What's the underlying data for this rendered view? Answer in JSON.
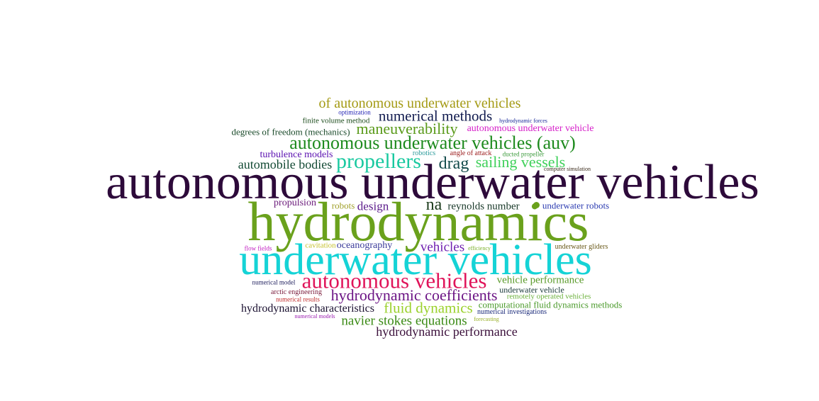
{
  "words": [
    {
      "text": "autonomous underwater vehicles",
      "color": "#2d0a3a"
    },
    {
      "text": "hydrodynamics",
      "color": "#6aa11c"
    },
    {
      "text": "underwater vehicles",
      "color": "#15d3d6"
    },
    {
      "text": "autonomous vehicles",
      "color": "#e0145a"
    },
    {
      "text": "propellers",
      "color": "#19c9a0"
    },
    {
      "text": "autonomous underwater vehicles (auv)",
      "color": "#1d8a1d"
    },
    {
      "text": "hydrodynamic coefficients",
      "color": "#6c1585"
    },
    {
      "text": "of autonomous underwater vehicles",
      "color": "#a49a14"
    },
    {
      "text": "numerical methods",
      "color": "#101a4e"
    },
    {
      "text": "maneuverability",
      "color": "#5a9a1a"
    },
    {
      "text": "sailing vessels",
      "color": "#3fd15a"
    },
    {
      "text": "na",
      "color": "#1a3a1a"
    },
    {
      "text": "drag",
      "color": "#114a4a"
    },
    {
      "text": "fluid dynamics",
      "color": "#9bd12c"
    },
    {
      "text": "navier stokes equations",
      "color": "#3a8a14"
    },
    {
      "text": "vehicles",
      "color": "#6f1fb0"
    },
    {
      "text": "automobile bodies",
      "color": "#134a34"
    },
    {
      "text": "hydrodynamic performance",
      "color": "#3a0f3a"
    },
    {
      "text": "hydrodynamic characteristics",
      "color": "#1a1030"
    },
    {
      "text": "design",
      "color": "#5a1a8a"
    },
    {
      "text": "vehicle performance",
      "color": "#5a9a2a"
    },
    {
      "text": "reynolds number",
      "color": "#1a3a2a"
    },
    {
      "text": "autonomous underwater vehicle",
      "color": "#d61fc9"
    },
    {
      "text": "degrees of freedom (mechanics)",
      "color": "#1a4a2a"
    },
    {
      "text": "propulsion",
      "color": "#6a1a7a"
    },
    {
      "text": "turbulence models",
      "color": "#5a10b0"
    },
    {
      "text": "oceanography",
      "color": "#3a3a9a"
    },
    {
      "text": "underwater robots",
      "color": "#2a3ab0"
    },
    {
      "text": "computational fluid dynamics methods",
      "color": "#4a9a2a"
    },
    {
      "text": "underwater vehicle",
      "color": "#1a3a3a"
    },
    {
      "text": "robots",
      "color": "#a0a02a"
    },
    {
      "text": "finite volume method",
      "color": "#1a4a1a"
    },
    {
      "text": "remotely operated vehicles",
      "color": "#6ab03a"
    },
    {
      "text": "numerical investigations",
      "color": "#1a2a7a"
    },
    {
      "text": "arctic engineering",
      "color": "#7a1a3a"
    },
    {
      "text": "cavitation",
      "color": "#c4c02a"
    },
    {
      "text": "underwater gliders",
      "color": "#6a5a1a"
    },
    {
      "text": "robotics",
      "color": "#2a9a9a"
    },
    {
      "text": "angle of attack",
      "color": "#9a1a1a"
    },
    {
      "text": "ducted propeller",
      "color": "#3a9a3a"
    },
    {
      "text": "optimization",
      "color": "#1a1ab0"
    },
    {
      "text": "flow fields",
      "color": "#c01ac0"
    },
    {
      "text": "numerical results",
      "color": "#c02a2a"
    },
    {
      "text": "numerical model",
      "color": "#1a1a5a"
    },
    {
      "text": "efficiency",
      "color": "#7ab02a"
    },
    {
      "text": "forecasting",
      "color": "#9ab02a"
    },
    {
      "text": "numerical models",
      "color": "#9a1ab0"
    },
    {
      "text": "computer simulation",
      "color": "#3a2a1a"
    },
    {
      "text": "hydrodynamic forces",
      "color": "#1a2a9a"
    }
  ],
  "dot_color": "#6aa11c"
}
